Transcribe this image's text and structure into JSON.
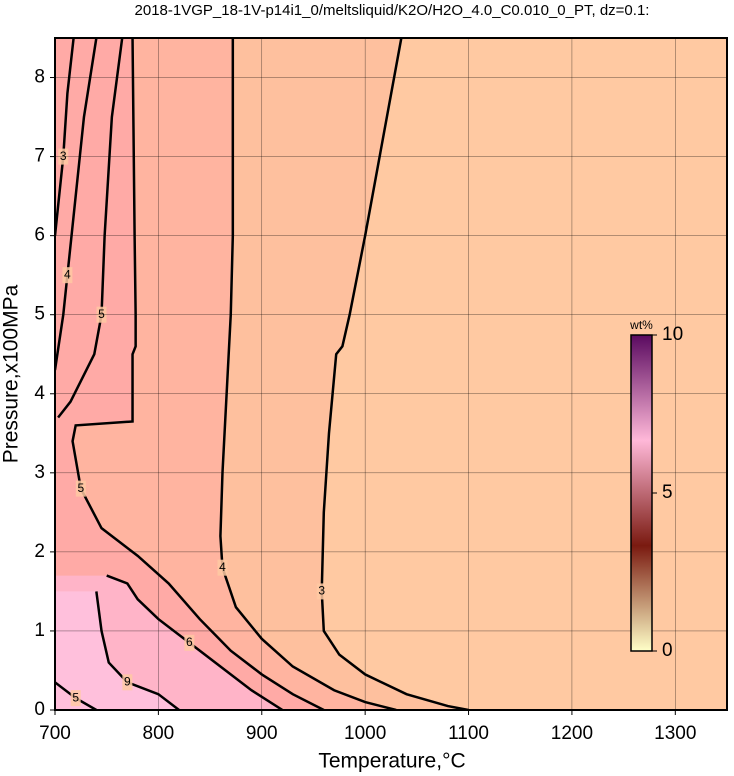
{
  "chart_data": {
    "type": "contour",
    "title": "2018-1VGP_18-1V-p14i1_0/meltsliquid/K2O/H2O_4.0_C0.010_0_PT, dz=0.1:",
    "xlabel": "Temperature,°C",
    "ylabel": "Pressure,x100MPa",
    "xlim": [
      700,
      1350
    ],
    "ylim": [
      0,
      8.5
    ],
    "xticks": [
      700,
      800,
      900,
      1000,
      1100,
      1200,
      1300
    ],
    "yticks": [
      0,
      1,
      2,
      3,
      4,
      5,
      6,
      7,
      8
    ],
    "grid": true,
    "background": "#ffc9a2",
    "series": [
      {
        "name": "3",
        "fill": "#fec09e",
        "x": [
          1035,
          1000,
          985,
          978,
          972,
          965,
          960,
          958,
          960,
          975,
          1000,
          1040,
          1080,
          1100
        ],
        "y": [
          8.5,
          6,
          5,
          4.6,
          4.5,
          3.5,
          2.5,
          1.5,
          1.0,
          0.7,
          0.45,
          0.2,
          0.05,
          0
        ]
      },
      {
        "name": "4",
        "fill": "#ffb4a0",
        "x": [
          872,
          872,
          870,
          866,
          862,
          860,
          862,
          875,
          900,
          930,
          970,
          1000,
          1030
        ],
        "y": [
          8.5,
          6,
          5,
          4,
          3,
          2.2,
          1.8,
          1.3,
          0.9,
          0.55,
          0.25,
          0.1,
          0
        ]
      },
      {
        "name": "5",
        "fill": "#ffaaa6",
        "x": [
          775,
          777,
          778,
          778,
          775,
          775,
          720,
          717,
          725,
          745,
          780,
          810,
          840,
          870,
          900,
          930,
          960
        ],
        "y": [
          8.5,
          6,
          5,
          4.6,
          4.5,
          3.65,
          3.6,
          3.4,
          2.8,
          2.3,
          1.95,
          1.6,
          1.15,
          0.75,
          0.45,
          0.2,
          0
        ]
      },
      {
        "name": "6",
        "fill": "#ffb4c8",
        "x": [
          750,
          770,
          780,
          800,
          830,
          860,
          890,
          920
        ],
        "y": [
          1.7,
          1.6,
          1.4,
          1.15,
          0.85,
          0.55,
          0.25,
          0
        ]
      },
      {
        "name": "9",
        "fill": "#ffc0dc",
        "x": [
          740,
          745,
          752,
          770,
          800,
          820
        ],
        "y": [
          1.5,
          1.0,
          0.6,
          0.35,
          0.2,
          0
        ]
      },
      {
        "name": "5",
        "x": [
          765,
          755,
          748,
          745,
          738,
          715,
          703
        ],
        "y": [
          8.5,
          7.5,
          6,
          5,
          4.5,
          3.9,
          3.7
        ]
      },
      {
        "name": "4",
        "x": [
          740,
          728,
          720,
          712,
          708,
          700
        ],
        "y": [
          8.5,
          7.5,
          6.5,
          5.5,
          5,
          4.3
        ]
      },
      {
        "name": "3",
        "x": [
          718,
          712,
          708,
          700
        ],
        "y": [
          8.5,
          7.8,
          7,
          6
        ]
      },
      {
        "name": "5",
        "x": [
          700,
          720,
          740
        ],
        "y": [
          0.35,
          0.15,
          0
        ]
      }
    ],
    "colorbar": {
      "label": "wt%",
      "zlim": [
        0,
        10
      ],
      "zticks": [
        0,
        5,
        10
      ],
      "colors": [
        "#ffffc8",
        "#7a1a10",
        "#ffb8d8",
        "#5a0a60"
      ]
    }
  }
}
